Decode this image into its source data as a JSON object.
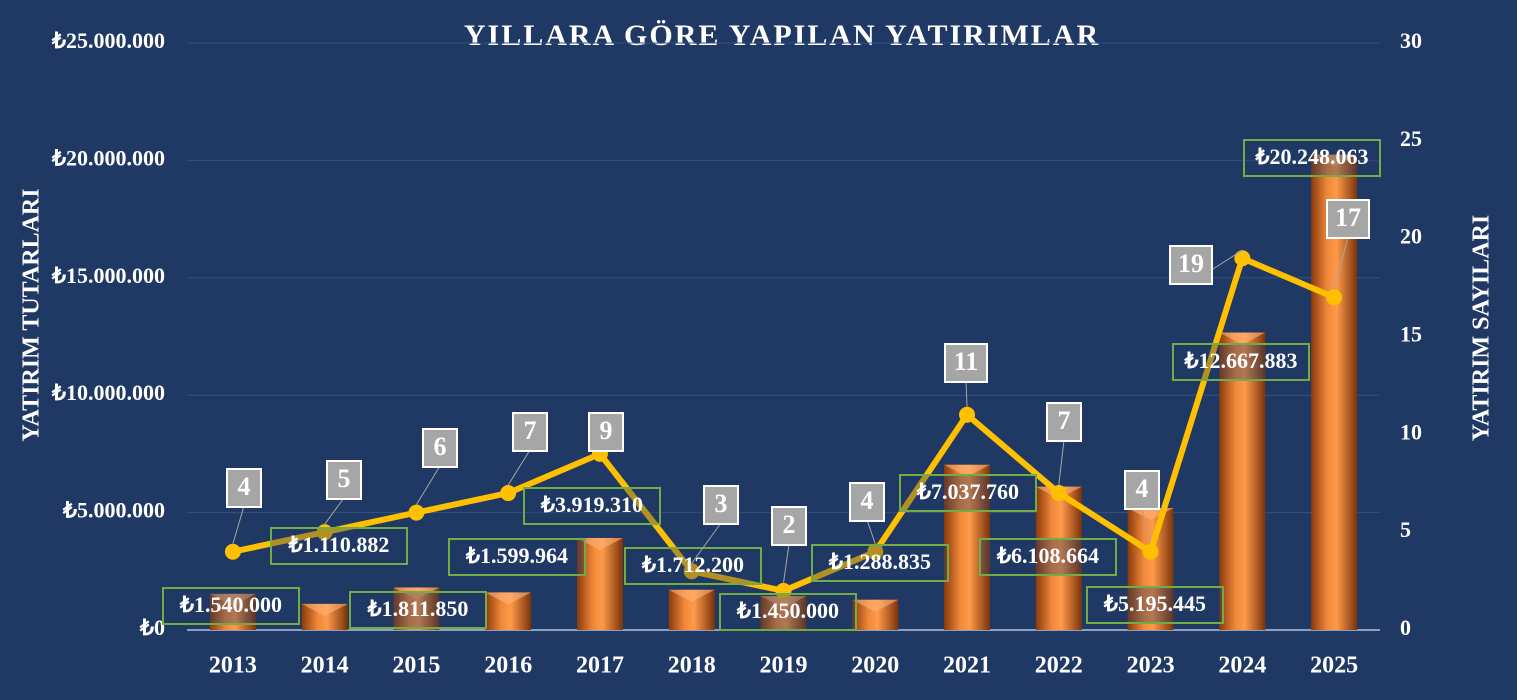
{
  "chart_data": {
    "type": "bar",
    "title": "YILLARA GÖRE YAPILAN YATIRIMLAR",
    "ylabel": "YATIRIM TUTARLARI",
    "y2label": "YATIRIM SAYILARI",
    "categories": [
      "2013",
      "2014",
      "2015",
      "2016",
      "2017",
      "2018",
      "2019",
      "2020",
      "2021",
      "2022",
      "2023",
      "2024",
      "2025"
    ],
    "series": [
      {
        "type": "bar",
        "color": "#e8772e",
        "values": [
          1540000,
          1110882,
          1811850,
          1599964,
          3919310,
          1712200,
          1450000,
          1288835,
          7037760,
          6108664,
          5195445,
          12667883,
          20248063
        ],
        "value_labels": [
          "₺1.540.000",
          "₺1.110.882",
          "₺1.811.850",
          "₺1.599.964",
          "₺3.919.310",
          "₺1.712.200",
          "₺1.450.000",
          "₺1.288.835",
          "₺7.037.760",
          "₺6.108.664",
          "₺5.195.445",
          "₺12.667.883",
          "₺20.248.063"
        ]
      },
      {
        "type": "line",
        "axis": "y2",
        "color": "#ffc000",
        "values": [
          4,
          5,
          6,
          7,
          9,
          3,
          2,
          4,
          11,
          7,
          4,
          19,
          17
        ]
      }
    ],
    "ylim": [
      0,
      25000000
    ],
    "yticks": [
      {
        "value": 0,
        "label": "₺0"
      },
      {
        "value": 5000000,
        "label": "₺5.000.000"
      },
      {
        "value": 10000000,
        "label": "₺10.000.000"
      },
      {
        "value": 15000000,
        "label": "₺15.000.000"
      },
      {
        "value": 20000000,
        "label": "₺20.000.000"
      },
      {
        "value": 25000000,
        "label": "₺25.000.000"
      }
    ],
    "y2lim": [
      0,
      30
    ],
    "y2ticks": [
      0,
      5,
      10,
      15,
      20,
      25,
      30
    ],
    "grid": true
  }
}
